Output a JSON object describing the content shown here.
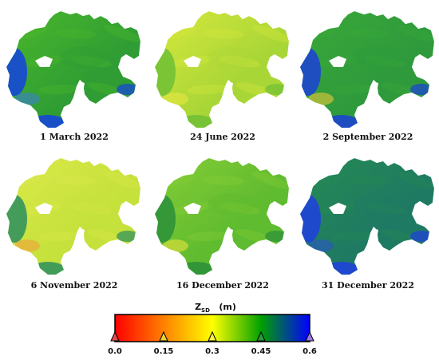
{
  "panels": [
    {
      "caption": "1 March 2022",
      "palette": {
        "base": "#2f9d33",
        "sat": "#4cb82c",
        "edge": "#1442e0",
        "patch": "#3c7fd0"
      }
    },
    {
      "caption": "24 June 2022",
      "palette": {
        "base": "#a9d637",
        "sat": "#d8e83c",
        "edge": "#6fbf35",
        "patch": "#e6e642"
      }
    },
    {
      "caption": "2 September 2022",
      "palette": {
        "base": "#2e9a3c",
        "sat": "#3aa838",
        "edge": "#1b3fd8",
        "patch": "#e8c83a"
      }
    },
    {
      "caption": "6 November 2022",
      "palette": {
        "base": "#c5e13b",
        "sat": "#dbe94a",
        "edge": "#2a8f5e",
        "patch": "#f2a03a"
      }
    },
    {
      "caption": "16 December 2022",
      "palette": {
        "base": "#5fbb2f",
        "sat": "#86cd36",
        "edge": "#2a8f3a",
        "patch": "#e8e23c"
      }
    },
    {
      "caption": "31 December 2022",
      "palette": {
        "base": "#1f7a63",
        "sat": "#258a52",
        "edge": "#1f3fe0",
        "patch": "#2a55c8"
      }
    }
  ],
  "legend": {
    "label": "Z",
    "label_sub": "SD",
    "unit": "(m)",
    "min": 0.0,
    "max": 0.6,
    "ticks": [
      {
        "value": 0.0,
        "label": "0.0",
        "color": "#e04a4a"
      },
      {
        "value": 0.15,
        "label": "0.15",
        "color": "#e8d23a"
      },
      {
        "value": 0.3,
        "label": "0.3",
        "color": "#f4f04a"
      },
      {
        "value": 0.45,
        "label": "0.45",
        "color": "#2e9a3c"
      },
      {
        "value": 0.6,
        "label": "0.6",
        "color": "#9a7ae0"
      }
    ],
    "stops": [
      "#ff0000",
      "#ff8000",
      "#ffff00",
      "#00a000",
      "#0000ff"
    ]
  }
}
